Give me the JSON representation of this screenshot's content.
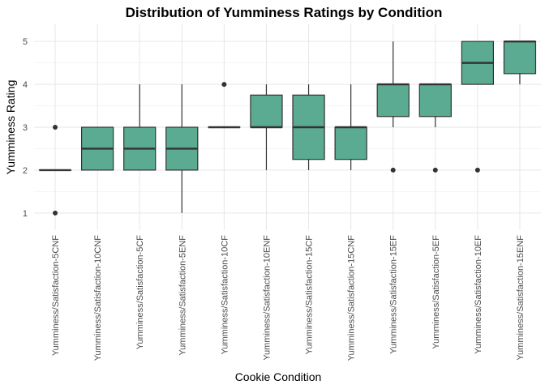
{
  "chart_data": {
    "type": "boxplot",
    "title": "Distribution of Yumminess Ratings by Condition",
    "xlabel": "Cookie Condition",
    "ylabel": "Yumminess Rating",
    "ylim": [
      0.6,
      5.4
    ],
    "y_ticks": [
      1,
      2,
      3,
      4,
      5
    ],
    "grid": true,
    "fill_color": "#5aab92",
    "stroke_color": "#333333",
    "categories": [
      "Yumminess/Satisfaction-5CNF",
      "Yumminess/Satisfaction-10CNF",
      "Yumminess/Satisfaction-5CF",
      "Yumminess/Satisfaction-5ENF",
      "Yumminess/Satisfaction-10CF",
      "Yumminess/Satisfaction-10ENF",
      "Yumminess/Satisfaction-15CF",
      "Yumminess/Satisfaction-15CNF",
      "Yumminess/Satisfaction-15EF",
      "Yumminess/Satisfaction-5EF",
      "Yumminess/Satisfaction-10EF",
      "Yumminess/Satisfaction-15ENF"
    ],
    "boxes": [
      {
        "q1": 2,
        "median": 2,
        "q3": 2,
        "whisker_low": 2,
        "whisker_high": 2,
        "outliers": [
          1,
          3
        ]
      },
      {
        "q1": 2,
        "median": 2.5,
        "q3": 3,
        "whisker_low": 2,
        "whisker_high": 3,
        "outliers": []
      },
      {
        "q1": 2,
        "median": 2.5,
        "q3": 3,
        "whisker_low": 2,
        "whisker_high": 4,
        "outliers": []
      },
      {
        "q1": 2,
        "median": 2.5,
        "q3": 3,
        "whisker_low": 1,
        "whisker_high": 4,
        "outliers": []
      },
      {
        "q1": 3,
        "median": 3,
        "q3": 3,
        "whisker_low": 3,
        "whisker_high": 3,
        "outliers": [
          4
        ]
      },
      {
        "q1": 3,
        "median": 3,
        "q3": 3.75,
        "whisker_low": 2,
        "whisker_high": 4,
        "outliers": []
      },
      {
        "q1": 2.25,
        "median": 3,
        "q3": 3.75,
        "whisker_low": 2,
        "whisker_high": 4,
        "outliers": []
      },
      {
        "q1": 2.25,
        "median": 3,
        "q3": 3,
        "whisker_low": 2,
        "whisker_high": 4,
        "outliers": []
      },
      {
        "q1": 3.25,
        "median": 4,
        "q3": 4,
        "whisker_low": 3,
        "whisker_high": 5,
        "outliers": [
          2
        ]
      },
      {
        "q1": 3.25,
        "median": 4,
        "q3": 4,
        "whisker_low": 3,
        "whisker_high": 4,
        "outliers": [
          2
        ]
      },
      {
        "q1": 4,
        "median": 4.5,
        "q3": 5,
        "whisker_low": 4,
        "whisker_high": 5,
        "outliers": [
          2
        ]
      },
      {
        "q1": 4.25,
        "median": 5,
        "q3": 5,
        "whisker_low": 4,
        "whisker_high": 5,
        "outliers": []
      }
    ]
  }
}
